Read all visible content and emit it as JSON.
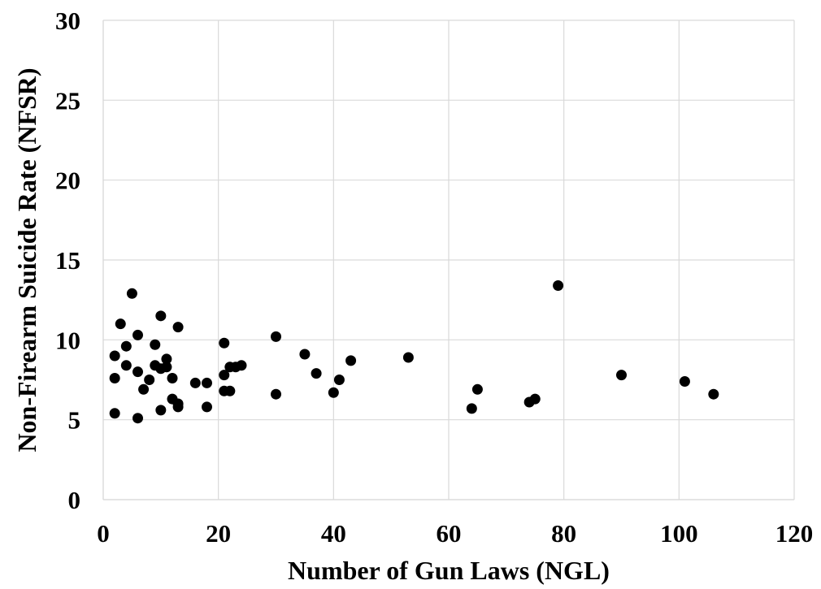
{
  "chart_data": {
    "type": "scatter",
    "xlabel": "Number of Gun Laws (NGL)",
    "ylabel": "Non-Firearm Suicide Rate (NFSR)",
    "xlim": [
      0,
      120
    ],
    "ylim": [
      0,
      30
    ],
    "xticks": [
      0,
      20,
      40,
      60,
      80,
      100,
      120
    ],
    "yticks": [
      0,
      5,
      10,
      15,
      20,
      25,
      30
    ],
    "grid": true,
    "marker_color": "#000000",
    "points": [
      {
        "x": 2,
        "y": 9.0
      },
      {
        "x": 2,
        "y": 7.6
      },
      {
        "x": 2,
        "y": 5.4
      },
      {
        "x": 3,
        "y": 11.0
      },
      {
        "x": 4,
        "y": 9.6
      },
      {
        "x": 4,
        "y": 8.4
      },
      {
        "x": 5,
        "y": 12.9
      },
      {
        "x": 6,
        "y": 10.3
      },
      {
        "x": 6,
        "y": 8.0
      },
      {
        "x": 6,
        "y": 5.1
      },
      {
        "x": 7,
        "y": 6.9
      },
      {
        "x": 8,
        "y": 7.5
      },
      {
        "x": 9,
        "y": 9.7
      },
      {
        "x": 9,
        "y": 8.4
      },
      {
        "x": 10,
        "y": 11.5
      },
      {
        "x": 10,
        "y": 8.2
      },
      {
        "x": 10,
        "y": 5.6
      },
      {
        "x": 11,
        "y": 8.8
      },
      {
        "x": 11,
        "y": 8.3
      },
      {
        "x": 12,
        "y": 7.6
      },
      {
        "x": 12,
        "y": 6.3
      },
      {
        "x": 13,
        "y": 10.8
      },
      {
        "x": 13,
        "y": 6.0
      },
      {
        "x": 13,
        "y": 5.8
      },
      {
        "x": 16,
        "y": 7.3
      },
      {
        "x": 18,
        "y": 7.3
      },
      {
        "x": 18,
        "y": 5.8
      },
      {
        "x": 21,
        "y": 9.8
      },
      {
        "x": 21,
        "y": 7.8
      },
      {
        "x": 21,
        "y": 6.8
      },
      {
        "x": 22,
        "y": 8.3
      },
      {
        "x": 22,
        "y": 6.8
      },
      {
        "x": 23,
        "y": 8.3
      },
      {
        "x": 24,
        "y": 8.4
      },
      {
        "x": 30,
        "y": 10.2
      },
      {
        "x": 30,
        "y": 6.6
      },
      {
        "x": 35,
        "y": 9.1
      },
      {
        "x": 37,
        "y": 7.9
      },
      {
        "x": 40,
        "y": 6.7
      },
      {
        "x": 41,
        "y": 7.5
      },
      {
        "x": 43,
        "y": 8.7
      },
      {
        "x": 53,
        "y": 8.9
      },
      {
        "x": 64,
        "y": 5.7
      },
      {
        "x": 65,
        "y": 6.9
      },
      {
        "x": 74,
        "y": 6.1
      },
      {
        "x": 75,
        "y": 6.3
      },
      {
        "x": 79,
        "y": 13.4
      },
      {
        "x": 90,
        "y": 7.8
      },
      {
        "x": 101,
        "y": 7.4
      },
      {
        "x": 106,
        "y": 6.6
      }
    ]
  }
}
